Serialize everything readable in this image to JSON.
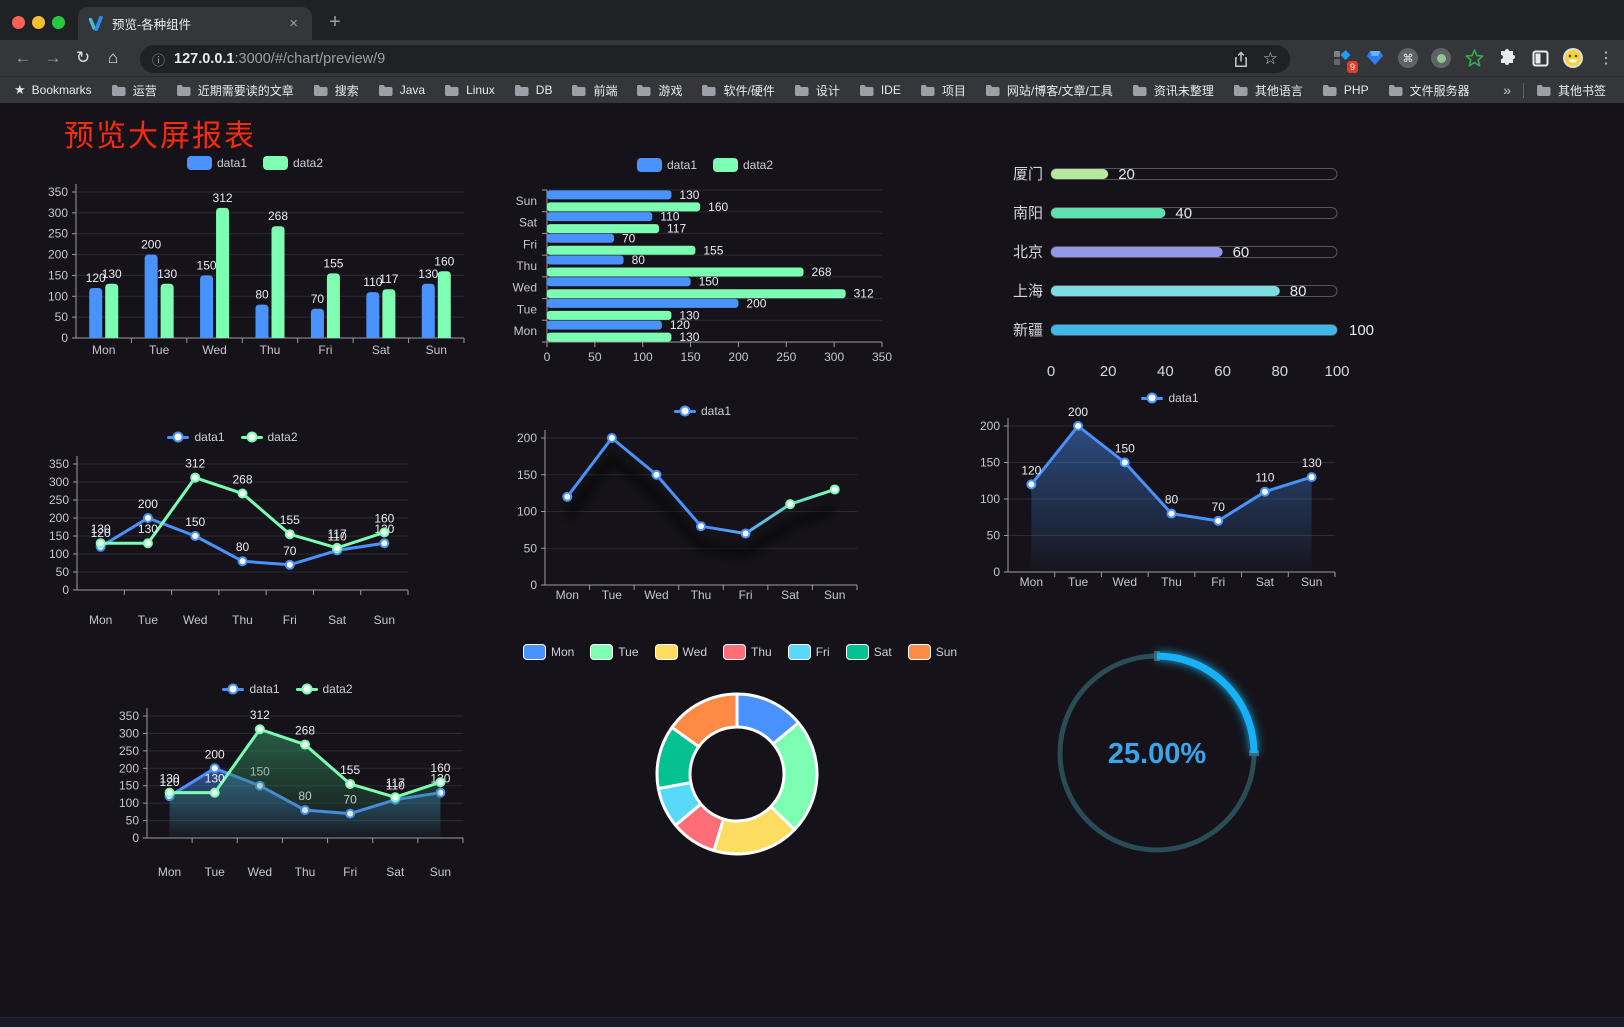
{
  "browser": {
    "tab_title": "预览-各种组件",
    "new_tab_button": "+",
    "url_host": "127.0.0.1",
    "url_rest": ":3000/#/chart/preview/9",
    "extension_badge": "9",
    "extension_icons": [
      "grid-diamond",
      "gem",
      "command-circle",
      "record-circle",
      "green-star",
      "puzzle",
      "contrast-square",
      "emoji-face",
      "kebab-menu"
    ],
    "bookmarks_label": "Bookmarks",
    "bookmark_items": [
      "运营",
      "近期需要读的文章",
      "搜索",
      "Java",
      "Linux",
      "DB",
      "前端",
      "游戏",
      "软件/硬件",
      "设计",
      "IDE",
      "项目",
      "网站/博客/文章/工具",
      "资讯未整理",
      "其他语言",
      "PHP",
      "文件服务器"
    ],
    "bookmarks_overflow": "»",
    "other_bookmarks": "其他书签"
  },
  "page": {
    "title": "预览大屏报表",
    "title_color": "#fa2a0e"
  },
  "colors": {
    "series_blue": "#4992ff",
    "series_green": "#7cffb2",
    "axis": "#9a9aa5",
    "grid": "#2b2b31",
    "tick_text": "#c6c6d0",
    "label_text": "#ebebf2"
  },
  "chart_data": [
    {
      "type": "bar",
      "categories": [
        "Mon",
        "Tue",
        "Wed",
        "Thu",
        "Fri",
        "Sat",
        "Sun"
      ],
      "series": [
        {
          "name": "data1",
          "color": "#4992ff",
          "values": [
            120,
            200,
            150,
            80,
            70,
            110,
            130
          ]
        },
        {
          "name": "data2",
          "color": "#7cffb2",
          "values": [
            130,
            130,
            312,
            268,
            155,
            117,
            160
          ]
        }
      ],
      "ylim": [
        0,
        350
      ],
      "yticks": [
        0,
        50,
        100,
        150,
        200,
        250,
        300,
        350
      ]
    },
    {
      "type": "hbar",
      "categories": [
        "Mon",
        "Tue",
        "Wed",
        "Thu",
        "Fri",
        "Sat",
        "Sun"
      ],
      "series": [
        {
          "name": "data1",
          "color": "#4992ff",
          "values": [
            120,
            200,
            150,
            80,
            70,
            110,
            130
          ]
        },
        {
          "name": "data2",
          "color": "#7cffb2",
          "values": [
            130,
            130,
            312,
            268,
            155,
            117,
            160
          ]
        }
      ],
      "xlim": [
        0,
        350
      ],
      "xticks": [
        0,
        50,
        100,
        150,
        200,
        250,
        300,
        350
      ]
    },
    {
      "type": "capsule",
      "max": 100,
      "xticks": [
        0,
        20,
        40,
        60,
        80,
        100
      ],
      "items": [
        {
          "label": "厦门",
          "value": 20,
          "color": "#b7e79f"
        },
        {
          "label": "南阳",
          "value": 40,
          "color": "#5fe0ae"
        },
        {
          "label": "北京",
          "value": 60,
          "color": "#9398e9"
        },
        {
          "label": "上海",
          "value": 80,
          "color": "#7edde2"
        },
        {
          "label": "新疆",
          "value": 100,
          "color": "#3cb9e8"
        }
      ]
    },
    {
      "type": "line",
      "labels": true,
      "categories": [
        "Mon",
        "Tue",
        "Wed",
        "Thu",
        "Fri",
        "Sat",
        "Sun"
      ],
      "series": [
        {
          "name": "data1",
          "color": "#4992ff",
          "values": [
            120,
            200,
            150,
            80,
            70,
            110,
            130
          ]
        },
        {
          "name": "data2",
          "color": "#7cffb2",
          "values": [
            130,
            130,
            312,
            268,
            155,
            117,
            160
          ]
        }
      ],
      "ylim": [
        0,
        350
      ],
      "yticks": [
        0,
        50,
        100,
        150,
        200,
        250,
        300,
        350
      ]
    },
    {
      "type": "line",
      "labels": false,
      "shadow": true,
      "categories": [
        "Mon",
        "Tue",
        "Wed",
        "Thu",
        "Fri",
        "Sat",
        "Sun"
      ],
      "series": [
        {
          "name": "data1",
          "color": "#4992ff",
          "gradient": [
            "#4992ff",
            "#7cffb2"
          ],
          "values": [
            120,
            200,
            150,
            80,
            70,
            110,
            130
          ]
        }
      ],
      "ylim": [
        0,
        200
      ],
      "yticks": [
        0,
        50,
        100,
        150,
        200
      ]
    },
    {
      "type": "line",
      "labels": true,
      "categories": [
        "Mon",
        "Tue",
        "Wed",
        "Thu",
        "Fri",
        "Sat",
        "Sun"
      ],
      "series": [
        {
          "name": "data1",
          "color": "#4992ff",
          "values": [
            120,
            200,
            150,
            80,
            70,
            110,
            130
          ],
          "area": {
            "from": "rgba(73,146,255,0.45)",
            "to": "rgba(73,146,255,0.02)"
          }
        }
      ],
      "ylim": [
        0,
        200
      ],
      "yticks": [
        0,
        50,
        100,
        150,
        200
      ]
    },
    {
      "type": "line",
      "labels": true,
      "categories": [
        "Mon",
        "Tue",
        "Wed",
        "Thu",
        "Fri",
        "Sat",
        "Sun"
      ],
      "series": [
        {
          "name": "data1",
          "color": "#4992ff",
          "values": [
            120,
            200,
            150,
            80,
            70,
            110,
            130
          ],
          "area": {
            "from": "rgba(73,146,255,0.50)",
            "to": "rgba(73,146,255,0.02)"
          }
        },
        {
          "name": "data2",
          "color": "#7cffb2",
          "values": [
            130,
            130,
            312,
            268,
            155,
            117,
            160
          ],
          "area": {
            "from": "rgba(47,125,87,0.70)",
            "to": "rgba(47,125,87,0.03)"
          }
        }
      ],
      "ylim": [
        0,
        350
      ],
      "yticks": [
        0,
        50,
        100,
        150,
        200,
        250,
        300,
        350
      ]
    },
    {
      "type": "donut",
      "legend": [
        "Mon",
        "Tue",
        "Wed",
        "Thu",
        "Fri",
        "Sat",
        "Sun"
      ],
      "values": [
        120,
        200,
        150,
        80,
        70,
        110,
        130
      ],
      "colors": [
        "#4992ff",
        "#7cffb2",
        "#fddd60",
        "#ff6e76",
        "#58d9f9",
        "#05c091",
        "#ff8a45"
      ]
    },
    {
      "type": "gauge",
      "label": "25.00%",
      "percent": 25,
      "color": "#14b2f5",
      "track": "#2a4c57",
      "text_color": "#3ba4ea"
    }
  ]
}
